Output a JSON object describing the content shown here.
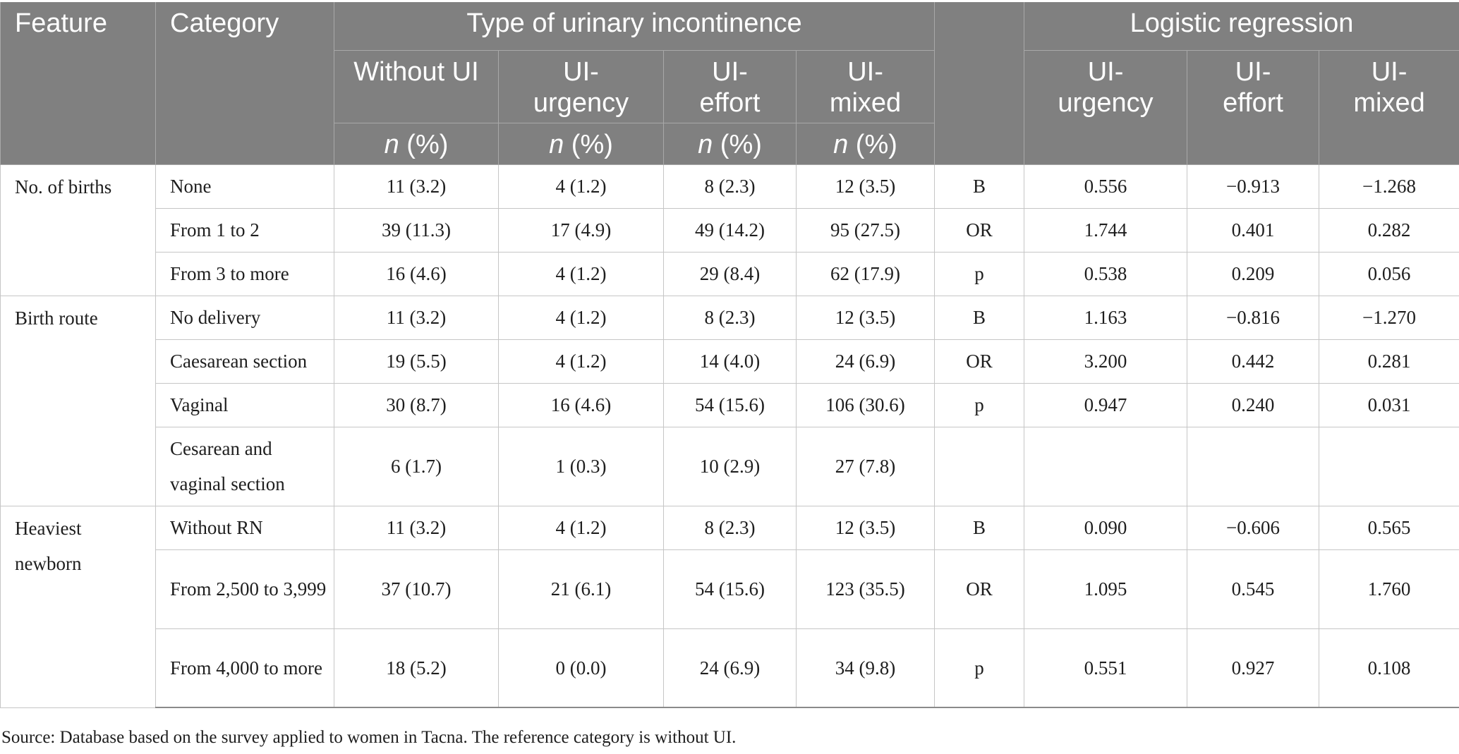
{
  "header": {
    "feature": "Feature",
    "category": "Category",
    "type_group": "Type of urinary incontinence",
    "logistic_group": "Logistic regression",
    "type_cols": [
      "Without UI",
      "UI-\nurgency",
      "UI-\neffort",
      "UI-\nmixed"
    ],
    "logistic_cols": [
      "UI-\nurgency",
      "UI-\neffort",
      "UI-\nmixed"
    ],
    "n_label": "n",
    "pct_label": " (%)"
  },
  "groups": [
    {
      "feature": "No. of births",
      "rows": [
        {
          "category": "None",
          "values": [
            "11 (3.2)",
            "4 (1.2)",
            "8 (2.3)",
            "12 (3.5)"
          ],
          "stat": "B",
          "lr": [
            "0.556",
            "−0.913",
            "−1.268"
          ]
        },
        {
          "category": "From 1 to 2",
          "values": [
            "39 (11.3)",
            "17 (4.9)",
            "49 (14.2)",
            "95 (27.5)"
          ],
          "stat": "OR",
          "lr": [
            "1.744",
            "0.401",
            "0.282"
          ]
        },
        {
          "category": "From 3 to more",
          "values": [
            "16 (4.6)",
            "4 (1.2)",
            "29 (8.4)",
            "62 (17.9)"
          ],
          "stat": "p",
          "lr": [
            "0.538",
            "0.209",
            "0.056"
          ]
        }
      ]
    },
    {
      "feature": "Birth route",
      "rows": [
        {
          "category": "No delivery",
          "values": [
            "11 (3.2)",
            "4 (1.2)",
            "8 (2.3)",
            "12 (3.5)"
          ],
          "stat": "B",
          "lr": [
            "1.163",
            "−0.816",
            "−1.270"
          ]
        },
        {
          "category": "Caesarean section",
          "values": [
            "19 (5.5)",
            "4 (1.2)",
            "14 (4.0)",
            "24 (6.9)"
          ],
          "stat": "OR",
          "lr": [
            "3.200",
            "0.442",
            "0.281"
          ]
        },
        {
          "category": "Vaginal",
          "values": [
            "30 (8.7)",
            "16 (4.6)",
            "54 (15.6)",
            "106 (30.6)"
          ],
          "stat": "p",
          "lr": [
            "0.947",
            "0.240",
            "0.031"
          ]
        },
        {
          "category": "Cesarean and vaginal section",
          "values": [
            "6 (1.7)",
            "1 (0.3)",
            "10 (2.9)",
            "27 (7.8)"
          ],
          "stat": "",
          "lr": [
            "",
            "",
            ""
          ]
        }
      ]
    },
    {
      "feature": "Heaviest newborn",
      "rows": [
        {
          "category": "Without RN",
          "values": [
            "11 (3.2)",
            "4 (1.2)",
            "8 (2.3)",
            "12 (3.5)"
          ],
          "stat": "B",
          "lr": [
            "0.090",
            "−0.606",
            "0.565"
          ]
        },
        {
          "category": "From 2,500 to 3,999",
          "values": [
            "37 (10.7)",
            "21 (6.1)",
            "54 (15.6)",
            "123 (35.5)"
          ],
          "stat": "OR",
          "lr": [
            "1.095",
            "0.545",
            "1.760"
          ]
        },
        {
          "category": "From 4,000 to more",
          "values": [
            "18 (5.2)",
            "0 (0.0)",
            "24 (6.9)",
            "34 (9.8)"
          ],
          "stat": "p",
          "lr": [
            "0.551",
            "0.927",
            "0.108"
          ]
        }
      ]
    }
  ],
  "source_note": "Source: Database based on the survey applied to women in Tacna. The reference category is without UI."
}
